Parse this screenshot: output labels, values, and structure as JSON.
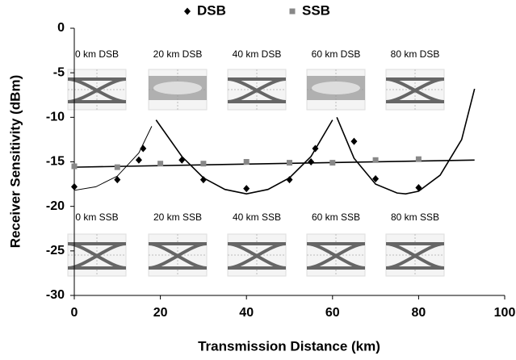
{
  "chart_data": {
    "type": "scatter",
    "xlabel": "Transmission Distance (km)",
    "ylabel": "Receiver Sensitivity (dBm)",
    "xlim": [
      0,
      100
    ],
    "xticks": [
      0,
      20,
      40,
      60,
      80,
      100
    ],
    "ylim": [
      -30,
      0
    ],
    "yticks": [
      -30,
      -25,
      -20,
      -15,
      -10,
      -5,
      0
    ],
    "legend": "top",
    "series": [
      {
        "name": "DSB",
        "color": "#000000",
        "marker": "diamond",
        "x": [
          0,
          10,
          15,
          16,
          25,
          30,
          40,
          50,
          55,
          56,
          65,
          70,
          80
        ],
        "values": [
          -17.8,
          -17.0,
          -14.8,
          -13.5,
          -14.8,
          -17.0,
          -18.0,
          -17.0,
          -15.0,
          -13.5,
          -12.7,
          -16.9,
          -17.9
        ]
      },
      {
        "name": "SSB",
        "color": "#888888",
        "marker": "square",
        "x": [
          0,
          10,
          20,
          30,
          40,
          50,
          60,
          70,
          80
        ],
        "values": [
          -15.5,
          -15.6,
          -15.2,
          -15.2,
          -15.0,
          -15.1,
          -15.1,
          -14.8,
          -14.7
        ]
      }
    ],
    "trendlines": [
      {
        "color": "#000000",
        "x": [
          0,
          5,
          10,
          15,
          18
        ],
        "values": [
          -18.2,
          -17.8,
          -16.6,
          -14.0,
          -11.0
        ]
      },
      {
        "color": "#000000",
        "x": [
          19,
          25,
          30,
          35,
          40,
          45,
          50,
          55,
          60
        ],
        "values": [
          -10.3,
          -14.4,
          -16.8,
          -18.1,
          -18.6,
          -18.1,
          -16.8,
          -14.4,
          -10.3
        ]
      },
      {
        "color": "#000000",
        "x": [
          61,
          65,
          70,
          75,
          77,
          80,
          85,
          90,
          93
        ],
        "values": [
          -10.0,
          -14.6,
          -17.5,
          -18.5,
          -18.6,
          -18.3,
          -16.5,
          -12.5,
          -6.8
        ]
      },
      {
        "color": "#000000",
        "x": [
          0,
          93
        ],
        "values": [
          -15.6,
          -14.8
        ]
      }
    ],
    "insets": [
      {
        "label": "0 km DSB"
      },
      {
        "label": "20 km DSB"
      },
      {
        "label": "40 km DSB"
      },
      {
        "label": "60 km DSB"
      },
      {
        "label": "80 km DSB"
      },
      {
        "label": "0 km SSB"
      },
      {
        "label": "20 km SSB"
      },
      {
        "label": "40 km SSB"
      },
      {
        "label": "60 km SSB"
      },
      {
        "label": "80 km SSB"
      }
    ]
  }
}
